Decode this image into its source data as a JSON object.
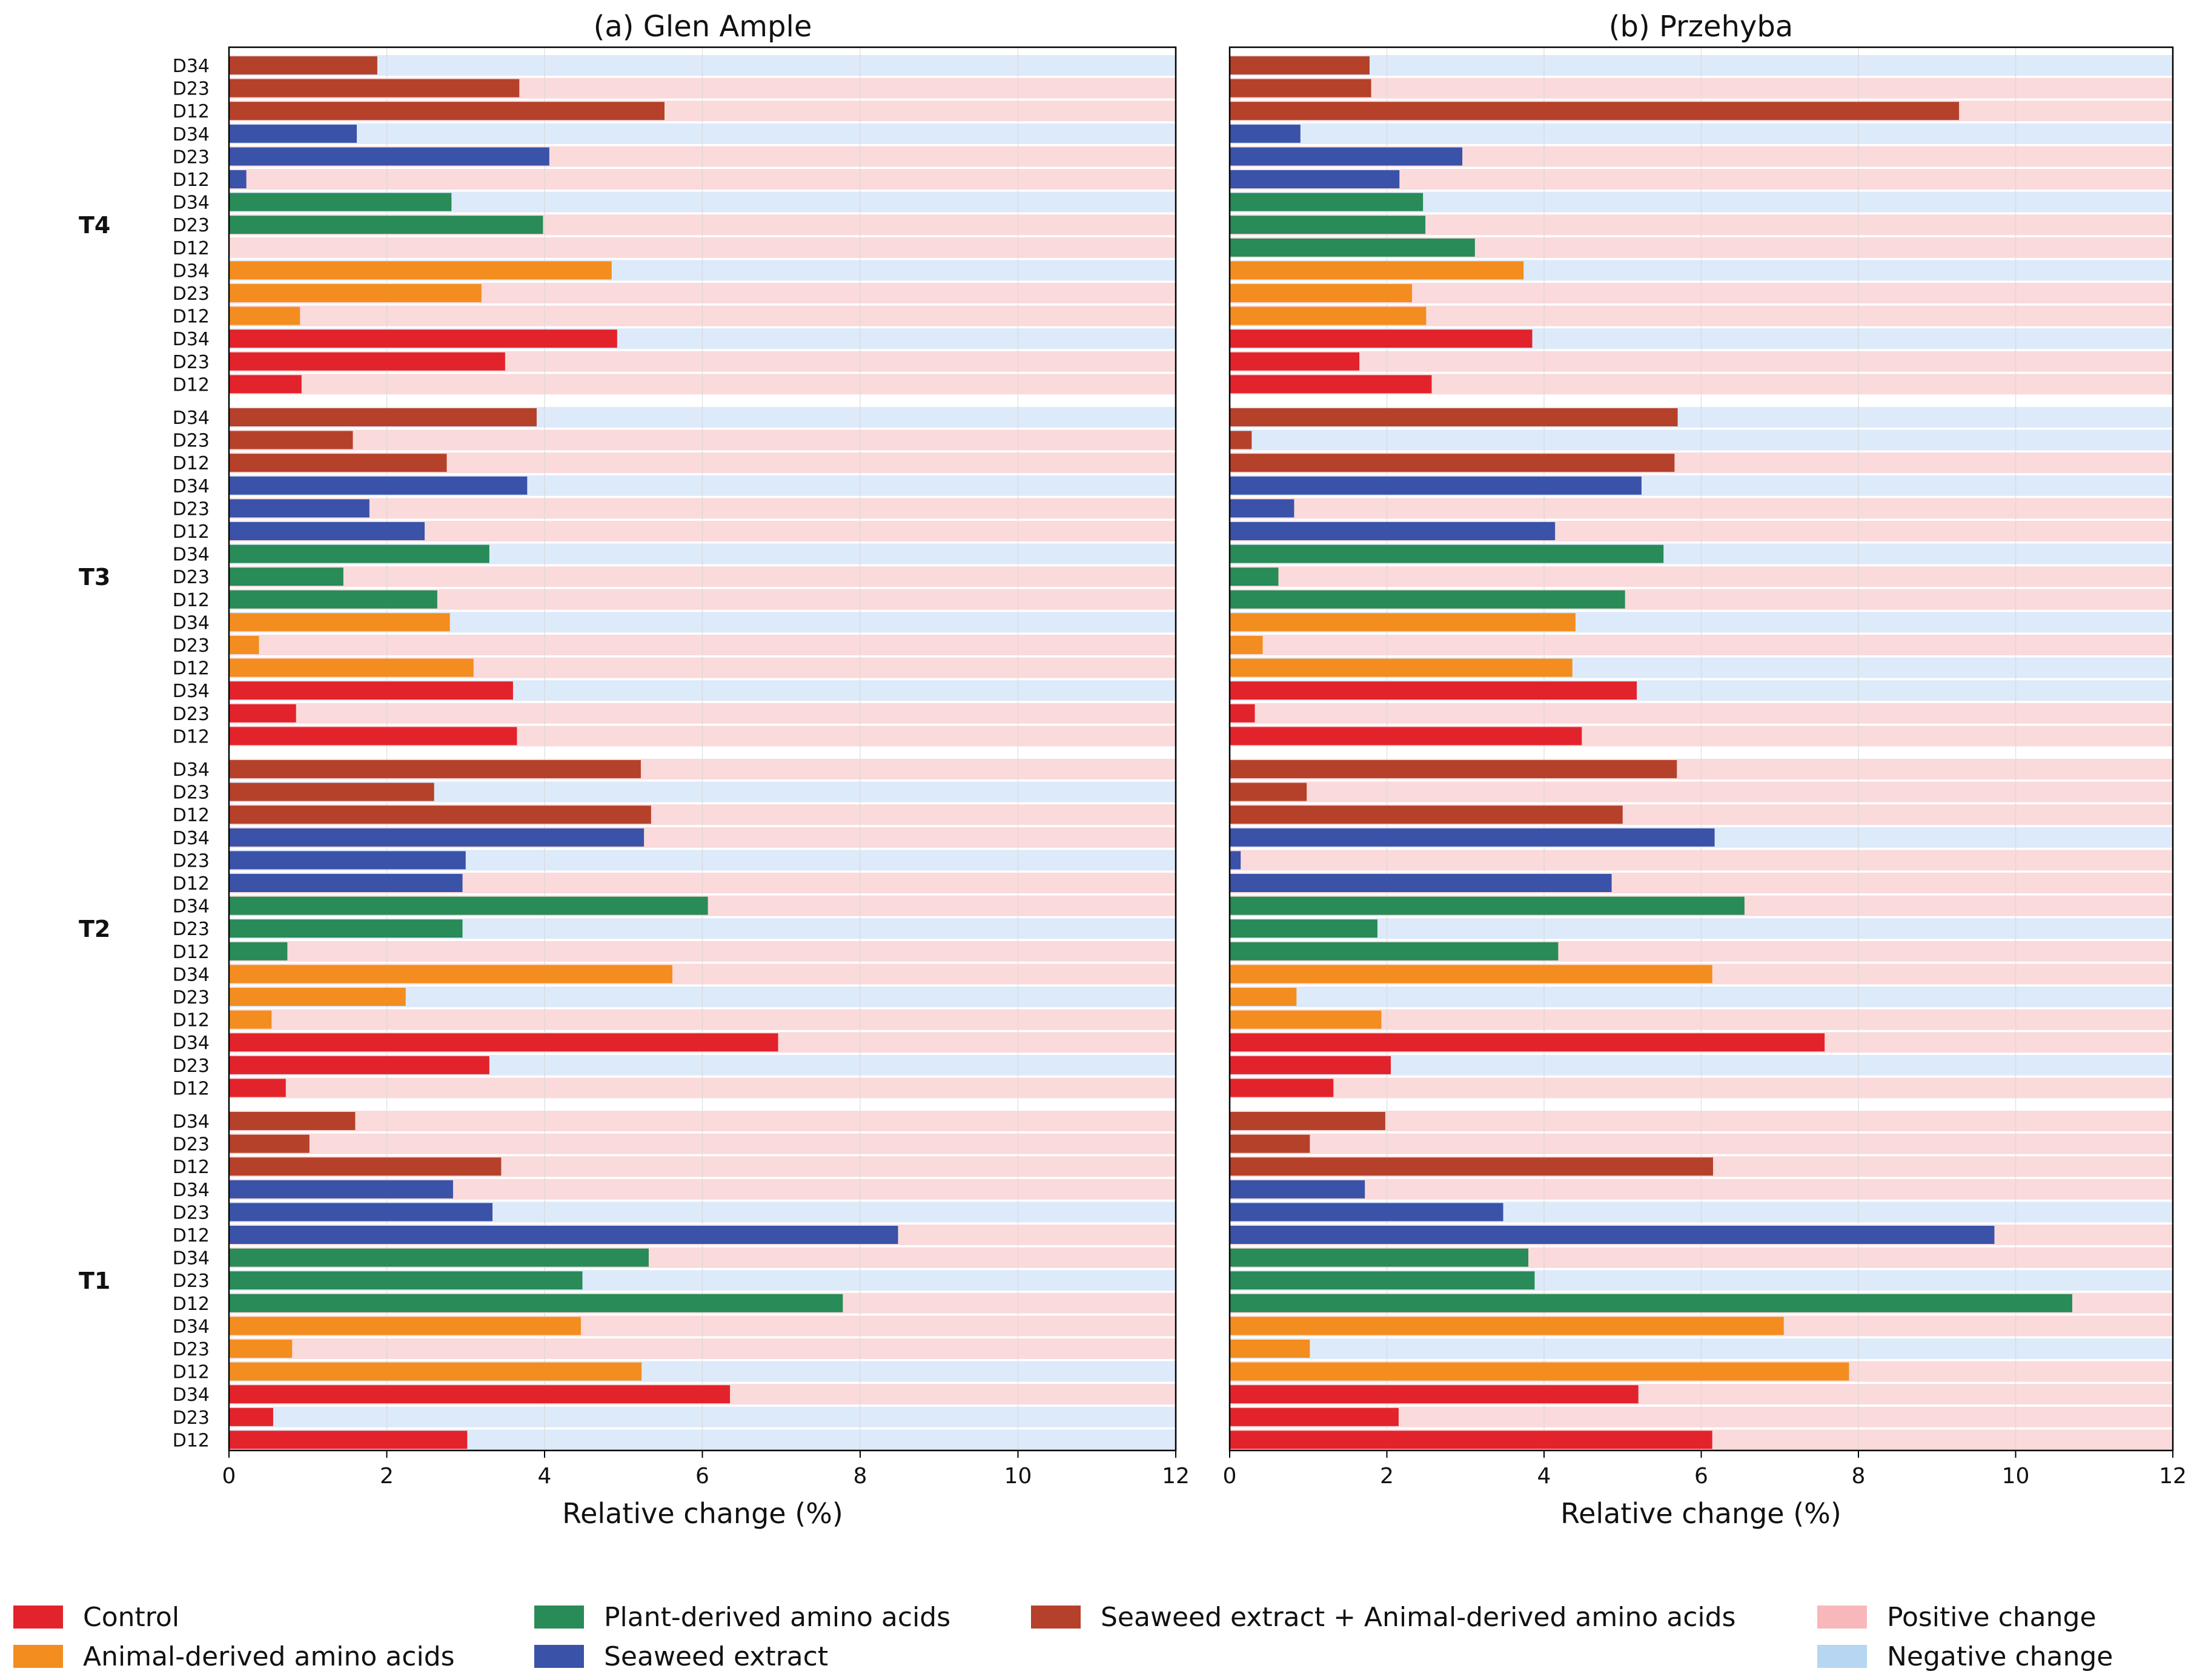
{
  "chart_data": [
    {
      "type": "bar",
      "orientation": "horizontal",
      "title": "(a) Glen Ample",
      "xlabel": "Relative change (%)",
      "xlim": [
        0,
        12
      ],
      "xticks": [
        "0",
        "2",
        "4",
        "6",
        "8",
        "10",
        "12"
      ],
      "grid": true,
      "groups": [
        "T4",
        "T3",
        "T2",
        "T1"
      ],
      "categories": [
        "D34",
        "D23",
        "D12"
      ],
      "series": [
        {
          "name": "Seaweed extract + Animal-derived amino acids",
          "color": "#b5412a",
          "values": {
            "T4": [
              1.88,
              3.68,
              5.52
            ],
            "T3": [
              3.9,
              1.57,
              2.76
            ],
            "T2": [
              5.22,
              2.6,
              5.35
            ],
            "T1": [
              1.6,
              1.02,
              3.45
            ]
          },
          "direction": {
            "T4": [
              "neg",
              "pos",
              "pos"
            ],
            "T3": [
              "neg",
              "pos",
              "pos"
            ],
            "T2": [
              "pos",
              "neg",
              "pos"
            ],
            "T1": [
              "pos",
              "pos",
              "pos"
            ]
          }
        },
        {
          "name": "Seaweed extract",
          "color": "#3a52a8",
          "values": {
            "T4": [
              1.62,
              4.06,
              0.22
            ],
            "T3": [
              3.78,
              1.78,
              2.48
            ],
            "T2": [
              5.26,
              3.0,
              2.96
            ],
            "T1": [
              2.84,
              3.34,
              8.48
            ]
          },
          "direction": {
            "T4": [
              "neg",
              "pos",
              "pos"
            ],
            "T3": [
              "neg",
              "pos",
              "pos"
            ],
            "T2": [
              "pos",
              "neg",
              "pos"
            ],
            "T1": [
              "pos",
              "neg",
              "pos"
            ]
          }
        },
        {
          "name": "Plant-derived amino acids",
          "color": "#288b58",
          "values": {
            "T4": [
              2.82,
              3.98,
              0.0
            ],
            "T3": [
              3.3,
              1.45,
              2.64
            ],
            "T2": [
              6.07,
              2.96,
              0.74
            ],
            "T1": [
              5.32,
              4.48,
              7.78
            ]
          },
          "direction": {
            "T4": [
              "neg",
              "pos",
              "pos"
            ],
            "T3": [
              "neg",
              "pos",
              "pos"
            ],
            "T2": [
              "pos",
              "neg",
              "pos"
            ],
            "T1": [
              "pos",
              "neg",
              "pos"
            ]
          }
        },
        {
          "name": "Animal-derived amino acids",
          "color": "#f38d1f",
          "values": {
            "T4": [
              4.85,
              3.2,
              0.9
            ],
            "T3": [
              2.8,
              0.38,
              3.1
            ],
            "T2": [
              5.62,
              2.24,
              0.54
            ],
            "T1": [
              4.46,
              0.8,
              5.23
            ]
          },
          "direction": {
            "T4": [
              "neg",
              "pos",
              "pos"
            ],
            "T3": [
              "neg",
              "pos",
              "pos"
            ],
            "T2": [
              "pos",
              "neg",
              "pos"
            ],
            "T1": [
              "pos",
              "pos",
              "neg"
            ]
          }
        },
        {
          "name": "Control",
          "color": "#e2232b",
          "values": {
            "T4": [
              4.92,
              3.5,
              0.92
            ],
            "T3": [
              3.6,
              0.85,
              3.65
            ],
            "T2": [
              6.96,
              3.3,
              0.72
            ],
            "T1": [
              6.35,
              0.56,
              3.02
            ]
          },
          "direction": {
            "T4": [
              "neg",
              "pos",
              "pos"
            ],
            "T3": [
              "neg",
              "pos",
              "pos"
            ],
            "T2": [
              "pos",
              "neg",
              "pos"
            ],
            "T1": [
              "pos",
              "neg",
              "neg"
            ]
          }
        }
      ]
    },
    {
      "type": "bar",
      "orientation": "horizontal",
      "title": "(b) Przehyba",
      "xlabel": "Relative change (%)",
      "xlim": [
        0,
        12
      ],
      "xticks": [
        "0",
        "2",
        "4",
        "6",
        "8",
        "10",
        "12"
      ],
      "grid": true,
      "groups": [
        "T4",
        "T3",
        "T2",
        "T1"
      ],
      "categories": [
        "D34",
        "D23",
        "D12"
      ],
      "series": [
        {
          "name": "Seaweed extract + Animal-derived amino acids",
          "color": "#b5412a",
          "values": {
            "T4": [
              1.78,
              1.8,
              9.28
            ],
            "T3": [
              5.7,
              0.28,
              5.66
            ],
            "T2": [
              5.69,
              0.98,
              5.0
            ],
            "T1": [
              1.98,
              1.02,
              6.15
            ]
          },
          "direction": {
            "T4": [
              "neg",
              "pos",
              "pos"
            ],
            "T3": [
              "neg",
              "neg",
              "pos"
            ],
            "T2": [
              "pos",
              "pos",
              "pos"
            ],
            "T1": [
              "pos",
              "pos",
              "pos"
            ]
          }
        },
        {
          "name": "Seaweed extract",
          "color": "#3a52a8",
          "values": {
            "T4": [
              0.9,
              2.96,
              2.16
            ],
            "T3": [
              5.24,
              0.82,
              4.14
            ],
            "T2": [
              6.17,
              0.14,
              4.86
            ],
            "T1": [
              1.72,
              3.48,
              9.73
            ]
          },
          "direction": {
            "T4": [
              "neg",
              "pos",
              "pos"
            ],
            "T3": [
              "neg",
              "pos",
              "pos"
            ],
            "T2": [
              "neg",
              "pos",
              "pos"
            ],
            "T1": [
              "pos",
              "neg",
              "pos"
            ]
          }
        },
        {
          "name": "Plant-derived amino acids",
          "color": "#288b58",
          "values": {
            "T4": [
              2.46,
              2.49,
              3.12
            ],
            "T3": [
              5.52,
              0.62,
              5.03
            ],
            "T2": [
              6.55,
              1.88,
              4.18
            ],
            "T1": [
              3.8,
              3.88,
              10.72
            ]
          },
          "direction": {
            "T4": [
              "neg",
              "pos",
              "pos"
            ],
            "T3": [
              "neg",
              "pos",
              "pos"
            ],
            "T2": [
              "pos",
              "neg",
              "pos"
            ],
            "T1": [
              "pos",
              "neg",
              "pos"
            ]
          }
        },
        {
          "name": "Animal-derived amino acids",
          "color": "#f38d1f",
          "values": {
            "T4": [
              3.74,
              2.32,
              2.5
            ],
            "T3": [
              4.4,
              0.42,
              4.36
            ],
            "T2": [
              6.14,
              0.85,
              1.93
            ],
            "T1": [
              7.05,
              1.02,
              7.88
            ]
          },
          "direction": {
            "T4": [
              "neg",
              "pos",
              "pos"
            ],
            "T3": [
              "neg",
              "pos",
              "neg"
            ],
            "T2": [
              "pos",
              "neg",
              "pos"
            ],
            "T1": [
              "pos",
              "neg",
              "pos"
            ]
          }
        },
        {
          "name": "Control",
          "color": "#e2232b",
          "values": {
            "T4": [
              3.85,
              1.65,
              2.57
            ],
            "T3": [
              5.18,
              0.32,
              4.48
            ],
            "T2": [
              7.57,
              2.05,
              1.32
            ],
            "T1": [
              5.2,
              2.15,
              6.14
            ]
          },
          "direction": {
            "T4": [
              "neg",
              "pos",
              "pos"
            ],
            "T3": [
              "neg",
              "pos",
              "pos"
            ],
            "T2": [
              "pos",
              "neg",
              "pos"
            ],
            "T1": [
              "pos",
              "pos",
              "pos"
            ]
          }
        }
      ]
    }
  ],
  "legend": {
    "items": [
      {
        "label": "Control",
        "color": "#e2232b"
      },
      {
        "label": "Animal-derived amino acids",
        "color": "#f38d1f"
      },
      {
        "label": "Plant-derived amino acids",
        "color": "#288b58"
      },
      {
        "label": "Seaweed extract",
        "color": "#3a52a8"
      },
      {
        "label": "Seaweed extract + Animal-derived amino acids",
        "color": "#b5412a"
      },
      {
        "label": "Positive change",
        "color": "#f8b7ba"
      },
      {
        "label": "Negative change",
        "color": "#b6d6f2"
      }
    ]
  },
  "colors": {
    "positive_background": "#fadadb",
    "negative_background": "#ddeafa",
    "grid": "#d8d8d8",
    "axis": "#000000"
  }
}
